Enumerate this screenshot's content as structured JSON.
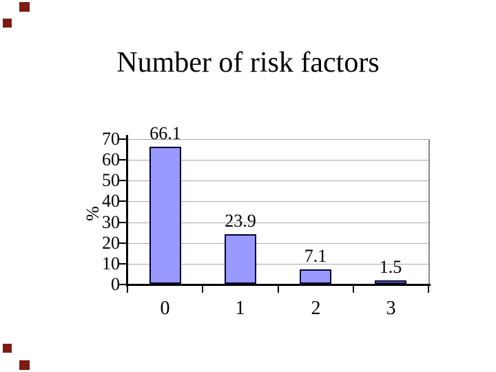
{
  "slide": {
    "title": "Number of risk factors",
    "background": "#ffffff",
    "decor_color": "#7f1a12"
  },
  "chart_data": {
    "type": "bar",
    "title": "Number of risk factors",
    "categories": [
      "0",
      "1",
      "2",
      "3"
    ],
    "values": [
      66.1,
      23.9,
      7.1,
      1.5
    ],
    "data_labels": [
      "66.1",
      "23.9",
      "7.1",
      "1.5"
    ],
    "xlabel": "",
    "ylabel": "%",
    "ylim": [
      0,
      70
    ],
    "ytick_step": 10,
    "ytick_labels": [
      "0",
      "10",
      "20",
      "30",
      "40",
      "50",
      "60",
      "70"
    ],
    "grid": true,
    "legend": "none",
    "colors": {
      "bar_fill": "#9999FF",
      "bar_border": "#000033",
      "gridline": "#a8a8a8",
      "axis": "#000000",
      "plot_right_border": "#8a8a8a",
      "text": "#000000"
    }
  }
}
